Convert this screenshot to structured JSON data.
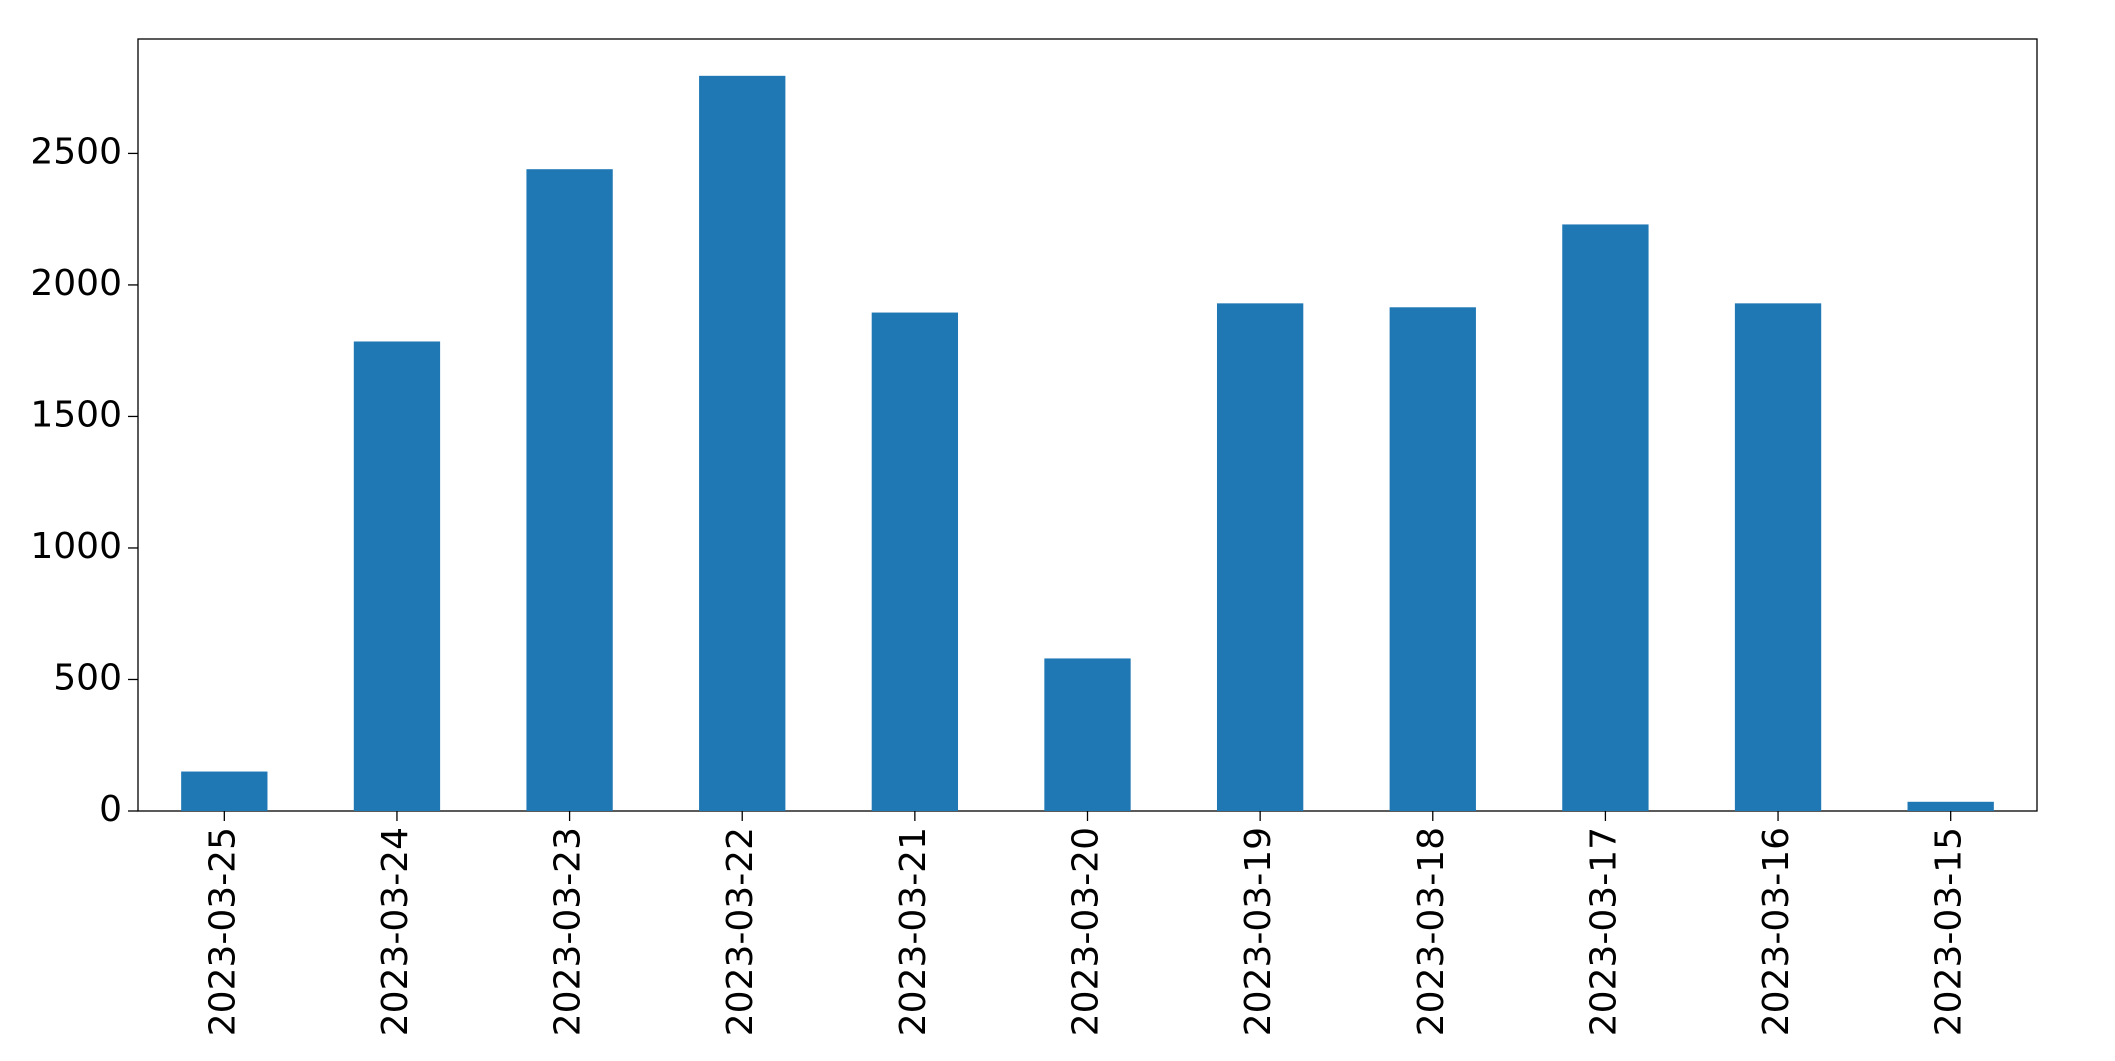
{
  "chart_data": {
    "type": "bar",
    "categories": [
      "2023-03-25",
      "2023-03-24",
      "2023-03-23",
      "2023-03-22",
      "2023-03-21",
      "2023-03-20",
      "2023-03-19",
      "2023-03-18",
      "2023-03-17",
      "2023-03-16",
      "2023-03-15"
    ],
    "values": [
      150,
      1785,
      2440,
      2795,
      1895,
      580,
      1930,
      1915,
      2230,
      1930,
      35
    ],
    "color": "#1f77b4",
    "ylim": [
      0,
      2935
    ],
    "yticks": [
      0,
      500,
      1000,
      1500,
      2000,
      2500
    ],
    "grid": false
  }
}
